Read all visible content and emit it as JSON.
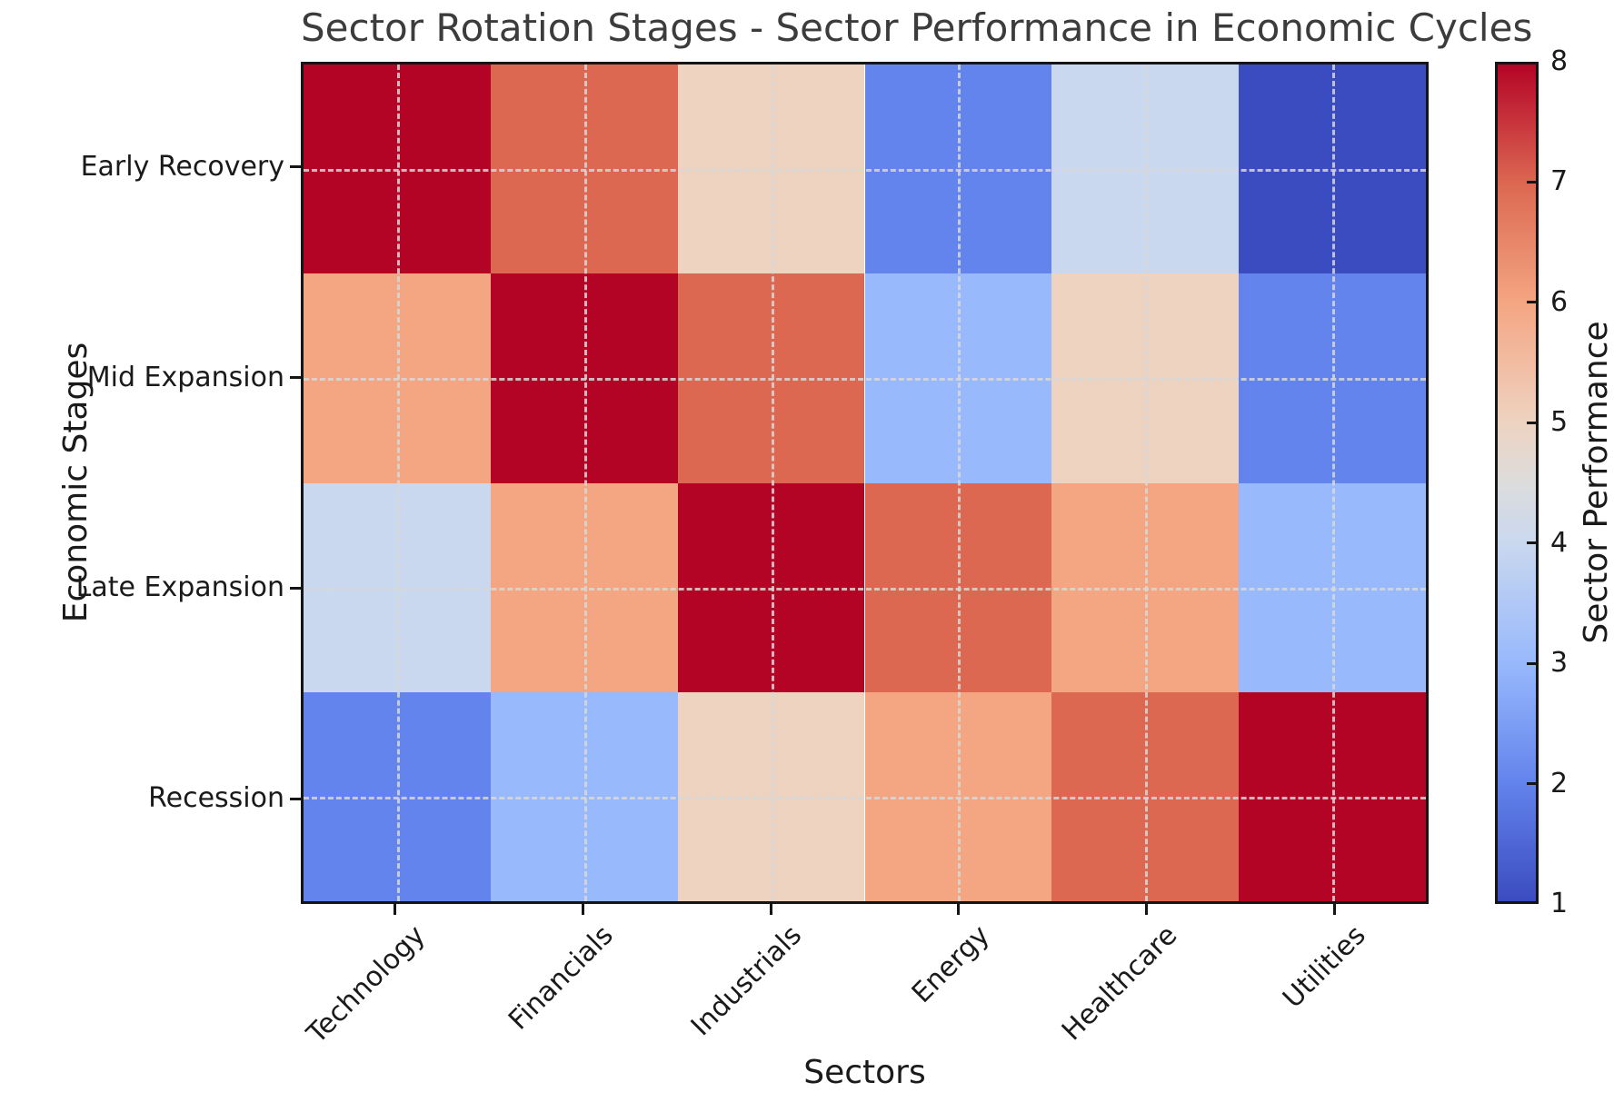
{
  "chart_data": {
    "type": "heatmap",
    "title": "Sector Rotation Stages - Sector Performance in Economic Cycles",
    "xlabel": "Sectors",
    "ylabel": "Economic Stages",
    "colorbar_label": "Sector Performance",
    "columns": [
      "Technology",
      "Financials",
      "Industrials",
      "Energy",
      "Healthcare",
      "Utilities"
    ],
    "rows": [
      "Early Recovery",
      "Mid Expansion",
      "Late Expansion",
      "Recession"
    ],
    "values": [
      [
        8,
        7,
        5,
        2,
        4,
        1
      ],
      [
        6,
        8,
        7,
        3,
        5,
        2
      ],
      [
        4,
        6,
        8,
        7,
        6,
        3
      ],
      [
        2,
        3,
        5,
        6,
        7,
        8
      ]
    ],
    "vmin": 1,
    "vmax": 8,
    "colorbar_ticks": [
      1,
      2,
      3,
      4,
      5,
      6,
      7,
      8
    ],
    "colormap": "coolwarm",
    "palette": {
      "1": "#3b4cc0",
      "2": "#6384ec",
      "3": "#98b9fc",
      "4": "#cad8ef",
      "5": "#eed3c1",
      "6": "#f4a683",
      "7": "#dc6852",
      "8": "#b40426"
    },
    "colorbar_midpoint_color": "#dcdcdc",
    "grid": true,
    "grid_style": "dashed",
    "legend_position": "right-colorbar"
  }
}
